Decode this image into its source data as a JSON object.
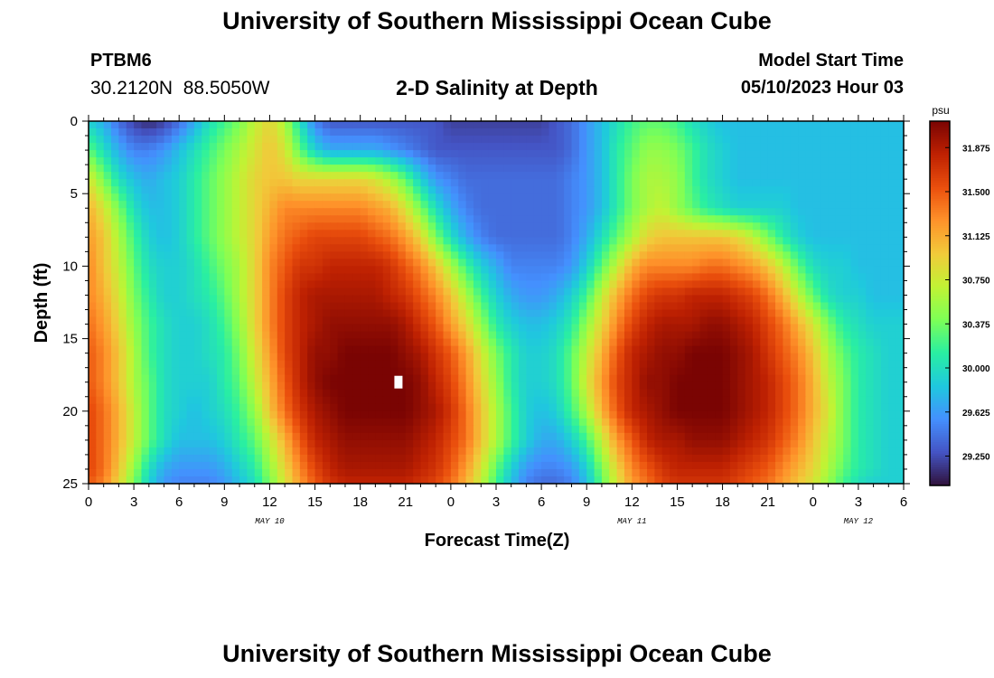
{
  "header": {
    "title": "University of Southern Mississippi Ocean Cube",
    "station_id": "PTBM6",
    "coordinates": "30.2120N  88.5050W",
    "subtitle": "2-D Salinity at Depth",
    "model_start_label": "Model Start Time",
    "model_start_value": "05/10/2023 Hour 03"
  },
  "footer": {
    "title": "University of Southern Mississippi Ocean Cube"
  },
  "chart_data": {
    "type": "heatmap",
    "title": "2-D Salinity at Depth",
    "xlabel": "Forecast Time(Z)",
    "ylabel": "Depth (ft)",
    "x_range_hours": [
      0,
      54
    ],
    "x_ticks": [
      {
        "hour": 0,
        "label": "0"
      },
      {
        "hour": 3,
        "label": "3"
      },
      {
        "hour": 6,
        "label": "6"
      },
      {
        "hour": 9,
        "label": "9"
      },
      {
        "hour": 12,
        "label": "12"
      },
      {
        "hour": 15,
        "label": "15"
      },
      {
        "hour": 18,
        "label": "18"
      },
      {
        "hour": 21,
        "label": "21"
      },
      {
        "hour": 24,
        "label": "0"
      },
      {
        "hour": 27,
        "label": "3"
      },
      {
        "hour": 30,
        "label": "6"
      },
      {
        "hour": 33,
        "label": "9"
      },
      {
        "hour": 36,
        "label": "12"
      },
      {
        "hour": 39,
        "label": "15"
      },
      {
        "hour": 42,
        "label": "18"
      },
      {
        "hour": 45,
        "label": "21"
      },
      {
        "hour": 48,
        "label": "0"
      },
      {
        "hour": 51,
        "label": "3"
      },
      {
        "hour": 54,
        "label": "6"
      }
    ],
    "date_labels": [
      {
        "hour": 12,
        "label": "MAY 10"
      },
      {
        "hour": 36,
        "label": "MAY 11"
      },
      {
        "hour": 51,
        "label": "MAY 12"
      }
    ],
    "y_range_ft": [
      0,
      25
    ],
    "y_ticks": [
      0,
      5,
      10,
      15,
      20,
      25
    ],
    "y_tick_labels": [
      "0",
      "5",
      "10",
      "15",
      "20",
      "25"
    ],
    "colorbar": {
      "unit": "psu",
      "range": [
        29.0,
        32.1
      ],
      "ticks": [
        31.875,
        31.5,
        31.125,
        30.75,
        30.375,
        30.0,
        29.625,
        29.25
      ],
      "tick_labels": [
        "31.875",
        "31.500",
        "31.125",
        "30.750",
        "30.375",
        "30.000",
        "29.625",
        "29.250"
      ],
      "colors": [
        "#30123b",
        "#4454c4",
        "#4490fe",
        "#1fc8de",
        "#29efa2",
        "#7dff56",
        "#c1f334",
        "#f1ca3a",
        "#fe922a",
        "#ea4f0d",
        "#be2102",
        "#7a0403"
      ]
    },
    "salinity_field_psu": {
      "hours": [
        0,
        1,
        2,
        3,
        4,
        5,
        6,
        7,
        8,
        9,
        10,
        11,
        12,
        13,
        14,
        15,
        16,
        17,
        18,
        19,
        20,
        21,
        22,
        23,
        24,
        25,
        26,
        27,
        28,
        29,
        30,
        31,
        32,
        33,
        34,
        35,
        36,
        37,
        38,
        39,
        40,
        41,
        42,
        43,
        44,
        45,
        46,
        47,
        48,
        49,
        50,
        51,
        52,
        53,
        54
      ],
      "depths_ft": [
        0,
        2,
        4,
        6,
        8,
        10,
        12,
        14,
        16,
        18,
        20,
        22,
        24,
        25
      ],
      "rows": [
        [
          29.9,
          29.7,
          29.4,
          29.2,
          29.1,
          29.2,
          29.4,
          29.7,
          30.0,
          30.2,
          30.4,
          30.7,
          30.9,
          30.6,
          30.0,
          29.5,
          29.3,
          29.3,
          29.3,
          29.3,
          29.3,
          29.3,
          29.3,
          29.3,
          29.2,
          29.2,
          29.2,
          29.2,
          29.2,
          29.2,
          29.2,
          29.3,
          29.4,
          29.6,
          29.8,
          30.0,
          30.2,
          30.3,
          30.3,
          30.2,
          30.0,
          29.9,
          29.8,
          29.8,
          29.8,
          29.8,
          29.8,
          29.8,
          29.8,
          29.8,
          29.8,
          29.8,
          29.8,
          29.8,
          29.8
        ],
        [
          30.3,
          30.0,
          29.7,
          29.5,
          29.5,
          29.6,
          29.8,
          30.0,
          30.2,
          30.4,
          30.6,
          30.8,
          31.0,
          30.8,
          30.3,
          29.9,
          29.7,
          29.7,
          29.7,
          29.7,
          29.6,
          29.5,
          29.4,
          29.3,
          29.3,
          29.3,
          29.3,
          29.3,
          29.3,
          29.3,
          29.3,
          29.3,
          29.4,
          29.6,
          29.8,
          30.1,
          30.3,
          30.5,
          30.5,
          30.4,
          30.2,
          30.0,
          29.9,
          29.8,
          29.8,
          29.8,
          29.8,
          29.8,
          29.8,
          29.8,
          29.8,
          29.8,
          29.8,
          29.8,
          29.8
        ],
        [
          30.8,
          30.4,
          30.0,
          29.8,
          29.7,
          29.8,
          29.9,
          30.1,
          30.3,
          30.5,
          30.7,
          30.9,
          31.0,
          31.0,
          30.9,
          30.9,
          30.9,
          30.9,
          30.9,
          30.8,
          30.6,
          30.3,
          29.9,
          29.6,
          29.5,
          29.4,
          29.4,
          29.4,
          29.4,
          29.4,
          29.4,
          29.4,
          29.5,
          29.6,
          29.8,
          30.1,
          30.4,
          30.6,
          30.6,
          30.5,
          30.2,
          30.0,
          29.9,
          29.8,
          29.8,
          29.8,
          29.8,
          29.8,
          29.8,
          29.8,
          29.8,
          29.8,
          29.8,
          29.8,
          29.8
        ],
        [
          31.1,
          30.8,
          30.4,
          30.0,
          29.8,
          29.8,
          29.9,
          30.1,
          30.3,
          30.5,
          30.7,
          30.9,
          31.1,
          31.3,
          31.3,
          31.3,
          31.3,
          31.3,
          31.3,
          31.2,
          31.1,
          30.8,
          30.4,
          30.0,
          29.7,
          29.5,
          29.4,
          29.4,
          29.4,
          29.4,
          29.4,
          29.4,
          29.5,
          29.6,
          29.8,
          30.1,
          30.4,
          30.6,
          30.7,
          30.5,
          30.3,
          30.1,
          30.0,
          29.9,
          29.9,
          29.9,
          29.9,
          29.8,
          29.8,
          29.8,
          29.8,
          29.8,
          29.8,
          29.8,
          29.8
        ],
        [
          31.2,
          31.0,
          30.6,
          30.2,
          29.9,
          29.8,
          29.9,
          30.1,
          30.3,
          30.5,
          30.7,
          30.9,
          31.2,
          31.4,
          31.5,
          31.6,
          31.6,
          31.6,
          31.6,
          31.5,
          31.4,
          31.2,
          30.9,
          30.4,
          30.0,
          29.7,
          29.5,
          29.4,
          29.4,
          29.4,
          29.4,
          29.4,
          29.5,
          29.7,
          30.0,
          30.3,
          30.6,
          30.9,
          31.0,
          31.0,
          31.0,
          31.0,
          31.0,
          30.9,
          30.7,
          30.4,
          30.1,
          29.9,
          29.8,
          29.8,
          29.8,
          29.8,
          29.8,
          29.8,
          29.8
        ],
        [
          31.3,
          31.0,
          30.7,
          30.3,
          30.0,
          29.9,
          29.9,
          30.0,
          30.2,
          30.4,
          30.6,
          30.9,
          31.3,
          31.5,
          31.7,
          31.7,
          31.8,
          31.8,
          31.8,
          31.8,
          31.7,
          31.5,
          31.3,
          31.0,
          30.6,
          30.2,
          29.9,
          29.7,
          29.5,
          29.5,
          29.5,
          29.5,
          29.6,
          29.9,
          30.3,
          30.7,
          31.1,
          31.3,
          31.3,
          31.3,
          31.3,
          31.4,
          31.4,
          31.3,
          31.2,
          31.0,
          30.7,
          30.3,
          30.0,
          29.9,
          29.9,
          29.8,
          29.8,
          29.8,
          29.8
        ],
        [
          31.3,
          31.1,
          30.8,
          30.4,
          30.1,
          29.9,
          29.9,
          30.0,
          30.1,
          30.3,
          30.6,
          30.9,
          31.3,
          31.6,
          31.8,
          31.9,
          31.9,
          31.9,
          31.9,
          31.9,
          31.8,
          31.7,
          31.5,
          31.3,
          31.0,
          30.6,
          30.2,
          29.9,
          29.7,
          29.6,
          29.6,
          29.7,
          29.9,
          30.2,
          30.7,
          31.1,
          31.4,
          31.6,
          31.7,
          31.7,
          31.8,
          31.8,
          31.8,
          31.7,
          31.6,
          31.4,
          31.1,
          30.7,
          30.3,
          30.0,
          29.9,
          29.9,
          29.8,
          29.8,
          29.8
        ],
        [
          31.4,
          31.2,
          30.9,
          30.5,
          30.2,
          30.0,
          29.9,
          29.9,
          30.0,
          30.2,
          30.5,
          30.9,
          31.3,
          31.6,
          31.8,
          31.9,
          32.0,
          32.0,
          32.0,
          32.0,
          32.0,
          31.9,
          31.7,
          31.5,
          31.2,
          30.9,
          30.5,
          30.1,
          29.9,
          29.8,
          29.8,
          29.9,
          30.1,
          30.5,
          30.9,
          31.3,
          31.6,
          31.8,
          31.9,
          31.9,
          31.9,
          32.0,
          32.0,
          31.9,
          31.8,
          31.6,
          31.4,
          31.1,
          30.8,
          30.4,
          30.1,
          30.0,
          29.9,
          29.9,
          29.9
        ],
        [
          31.5,
          31.3,
          31.0,
          30.6,
          30.2,
          30.0,
          29.9,
          29.9,
          30.0,
          30.1,
          30.4,
          30.8,
          31.2,
          31.6,
          31.8,
          32.0,
          32.0,
          32.1,
          32.1,
          32.1,
          32.1,
          32.0,
          31.9,
          31.7,
          31.5,
          31.2,
          30.8,
          30.4,
          30.1,
          29.9,
          29.9,
          30.0,
          30.3,
          30.7,
          31.1,
          31.5,
          31.8,
          31.9,
          32.0,
          32.0,
          32.1,
          32.1,
          32.1,
          32.0,
          31.9,
          31.7,
          31.5,
          31.3,
          31.0,
          30.6,
          30.3,
          30.1,
          30.0,
          29.9,
          29.9
        ],
        [
          31.5,
          31.3,
          31.0,
          30.6,
          30.3,
          30.0,
          29.9,
          29.9,
          29.9,
          30.1,
          30.3,
          30.7,
          31.1,
          31.5,
          31.8,
          32.0,
          32.1,
          32.1,
          32.1,
          32.1,
          32.1,
          32.1,
          32.0,
          31.8,
          31.6,
          31.3,
          30.9,
          30.5,
          30.1,
          29.9,
          29.9,
          30.0,
          30.3,
          30.8,
          31.2,
          31.6,
          31.8,
          32.0,
          32.0,
          32.1,
          32.1,
          32.1,
          32.1,
          32.0,
          31.9,
          31.8,
          31.6,
          31.4,
          31.1,
          30.7,
          30.4,
          30.1,
          30.0,
          29.9,
          29.9
        ],
        [
          31.6,
          31.4,
          31.1,
          30.7,
          30.3,
          30.0,
          29.9,
          29.8,
          29.9,
          30.0,
          30.2,
          30.5,
          31.0,
          31.4,
          31.7,
          31.9,
          32.0,
          32.1,
          32.1,
          32.1,
          32.1,
          32.1,
          32.0,
          31.9,
          31.7,
          31.4,
          31.0,
          30.6,
          30.2,
          29.9,
          29.8,
          29.9,
          30.2,
          30.6,
          31.1,
          31.5,
          31.8,
          31.9,
          32.0,
          32.1,
          32.1,
          32.1,
          32.1,
          32.0,
          31.9,
          31.8,
          31.6,
          31.4,
          31.1,
          30.8,
          30.4,
          30.1,
          30.0,
          29.9,
          29.9
        ],
        [
          31.6,
          31.4,
          31.1,
          30.7,
          30.3,
          30.0,
          29.8,
          29.8,
          29.8,
          29.9,
          30.1,
          30.3,
          30.7,
          31.1,
          31.5,
          31.8,
          31.9,
          32.0,
          32.0,
          32.0,
          32.0,
          32.0,
          31.9,
          31.8,
          31.6,
          31.4,
          31.0,
          30.6,
          30.2,
          29.9,
          29.7,
          29.7,
          29.9,
          30.2,
          30.7,
          31.2,
          31.5,
          31.8,
          31.9,
          31.9,
          32.0,
          32.0,
          32.0,
          31.9,
          31.8,
          31.7,
          31.5,
          31.3,
          31.0,
          30.7,
          30.4,
          30.1,
          30.0,
          29.9,
          29.9
        ],
        [
          31.6,
          31.4,
          31.0,
          30.5,
          30.0,
          29.7,
          29.6,
          29.6,
          29.6,
          29.7,
          29.9,
          30.1,
          30.5,
          30.9,
          31.3,
          31.6,
          31.8,
          31.9,
          31.9,
          31.9,
          31.9,
          31.9,
          31.8,
          31.7,
          31.5,
          31.2,
          30.8,
          30.3,
          29.9,
          29.6,
          29.5,
          29.5,
          29.6,
          29.9,
          30.4,
          30.9,
          31.3,
          31.5,
          31.7,
          31.8,
          31.8,
          31.8,
          31.8,
          31.7,
          31.6,
          31.5,
          31.3,
          31.1,
          30.9,
          30.6,
          30.3,
          30.1,
          30.0,
          29.9,
          29.9
        ],
        [
          31.5,
          31.3,
          30.9,
          30.4,
          29.9,
          29.6,
          29.5,
          29.5,
          29.5,
          29.6,
          29.8,
          30.0,
          30.4,
          30.8,
          31.2,
          31.5,
          31.7,
          31.8,
          31.8,
          31.8,
          31.8,
          31.8,
          31.7,
          31.6,
          31.4,
          31.1,
          30.7,
          30.2,
          29.8,
          29.5,
          29.4,
          29.4,
          29.5,
          29.8,
          30.3,
          30.8,
          31.2,
          31.4,
          31.6,
          31.7,
          31.7,
          31.7,
          31.7,
          31.6,
          31.5,
          31.4,
          31.2,
          31.0,
          30.8,
          30.5,
          30.2,
          30.0,
          29.9,
          29.9,
          29.9
        ]
      ]
    },
    "marker": {
      "hour": 20.5,
      "depth_ft": 18,
      "label": ""
    }
  }
}
